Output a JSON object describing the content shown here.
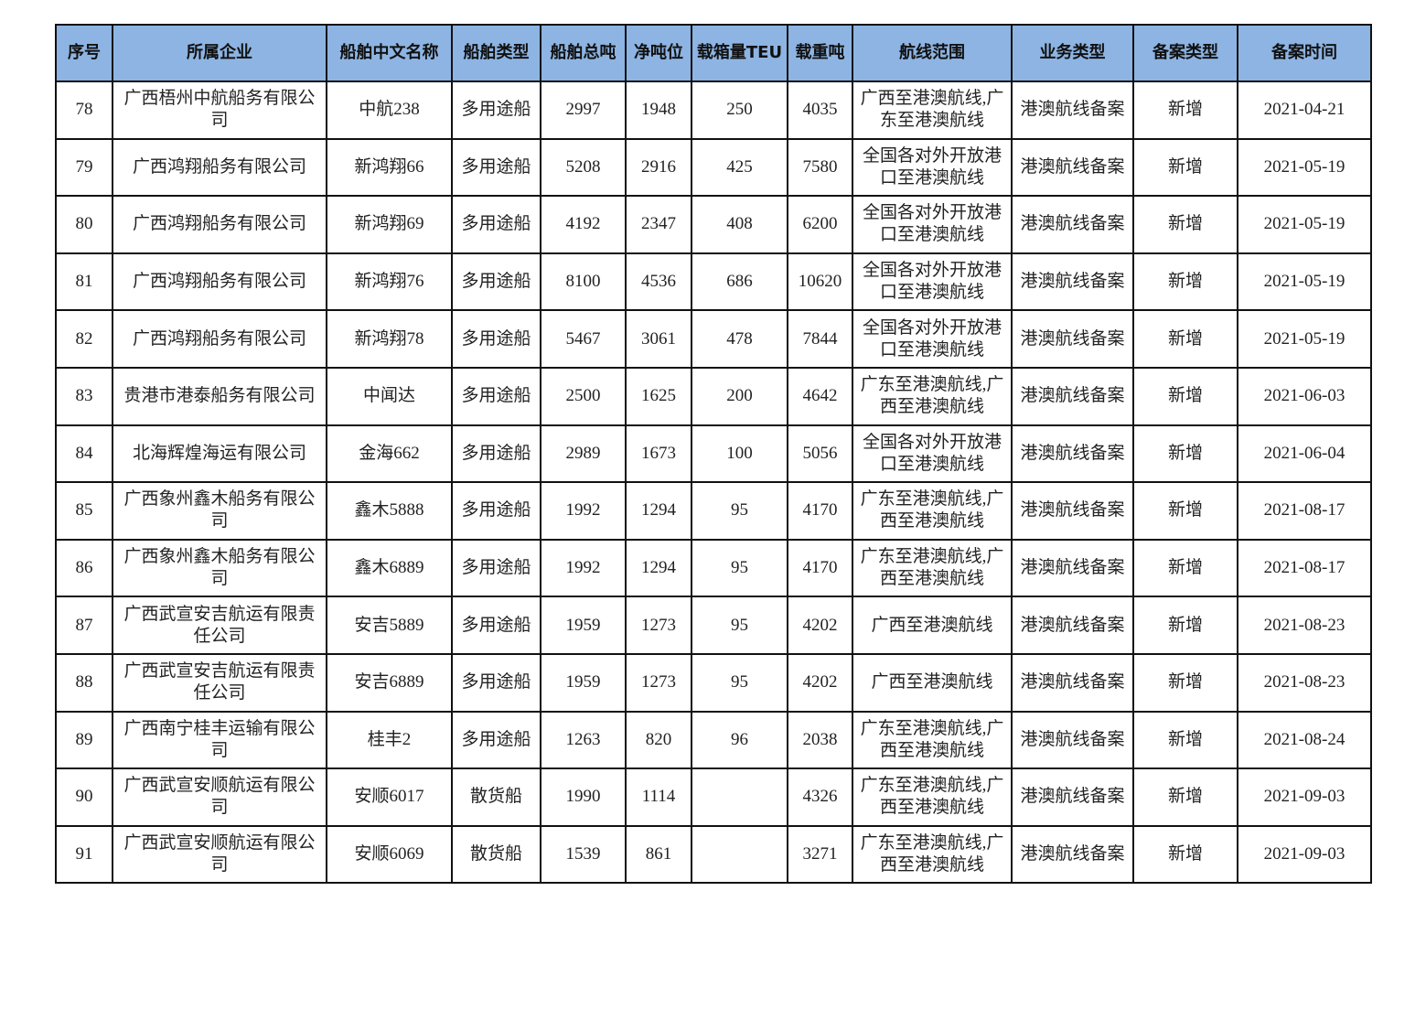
{
  "table": {
    "header_color": "#8DB4E2",
    "columns": [
      "序号",
      "所属企业",
      "船舶中文名称",
      "船舶类型",
      "船舶总吨",
      "净吨位",
      "载箱量TEU",
      "载重吨",
      "航线范围",
      "业务类型",
      "备案类型",
      "备案时间"
    ],
    "rows": [
      [
        "78",
        "广西梧州中航船务有限公司",
        "中航238",
        "多用途船",
        "2997",
        "1948",
        "250",
        "4035",
        "广西至港澳航线,广东至港澳航线",
        "港澳航线备案",
        "新增",
        "2021-04-21"
      ],
      [
        "79",
        "广西鸿翔船务有限公司",
        "新鸿翔66",
        "多用途船",
        "5208",
        "2916",
        "425",
        "7580",
        "全国各对外开放港口至港澳航线",
        "港澳航线备案",
        "新增",
        "2021-05-19"
      ],
      [
        "80",
        "广西鸿翔船务有限公司",
        "新鸿翔69",
        "多用途船",
        "4192",
        "2347",
        "408",
        "6200",
        "全国各对外开放港口至港澳航线",
        "港澳航线备案",
        "新增",
        "2021-05-19"
      ],
      [
        "81",
        "广西鸿翔船务有限公司",
        "新鸿翔76",
        "多用途船",
        "8100",
        "4536",
        "686",
        "10620",
        "全国各对外开放港口至港澳航线",
        "港澳航线备案",
        "新增",
        "2021-05-19"
      ],
      [
        "82",
        "广西鸿翔船务有限公司",
        "新鸿翔78",
        "多用途船",
        "5467",
        "3061",
        "478",
        "7844",
        "全国各对外开放港口至港澳航线",
        "港澳航线备案",
        "新增",
        "2021-05-19"
      ],
      [
        "83",
        "贵港市港泰船务有限公司",
        "中闻达",
        "多用途船",
        "2500",
        "1625",
        "200",
        "4642",
        "广东至港澳航线,广西至港澳航线",
        "港澳航线备案",
        "新增",
        "2021-06-03"
      ],
      [
        "84",
        "北海辉煌海运有限公司",
        "金海662",
        "多用途船",
        "2989",
        "1673",
        "100",
        "5056",
        "全国各对外开放港口至港澳航线",
        "港澳航线备案",
        "新增",
        "2021-06-04"
      ],
      [
        "85",
        "广西象州鑫木船务有限公司",
        "鑫木5888",
        "多用途船",
        "1992",
        "1294",
        "95",
        "4170",
        "广东至港澳航线,广西至港澳航线",
        "港澳航线备案",
        "新增",
        "2021-08-17"
      ],
      [
        "86",
        "广西象州鑫木船务有限公司",
        "鑫木6889",
        "多用途船",
        "1992",
        "1294",
        "95",
        "4170",
        "广东至港澳航线,广西至港澳航线",
        "港澳航线备案",
        "新增",
        "2021-08-17"
      ],
      [
        "87",
        "广西武宣安吉航运有限责任公司",
        "安吉5889",
        "多用途船",
        "1959",
        "1273",
        "95",
        "4202",
        "广西至港澳航线",
        "港澳航线备案",
        "新增",
        "2021-08-23"
      ],
      [
        "88",
        "广西武宣安吉航运有限责任公司",
        "安吉6889",
        "多用途船",
        "1959",
        "1273",
        "95",
        "4202",
        "广西至港澳航线",
        "港澳航线备案",
        "新增",
        "2021-08-23"
      ],
      [
        "89",
        "广西南宁桂丰运输有限公司",
        "桂丰2",
        "多用途船",
        "1263",
        "820",
        "96",
        "2038",
        "广东至港澳航线,广西至港澳航线",
        "港澳航线备案",
        "新增",
        "2021-08-24"
      ],
      [
        "90",
        "广西武宣安顺航运有限公司",
        "安顺6017",
        "散货船",
        "1990",
        "1114",
        "",
        "4326",
        "广东至港澳航线,广西至港澳航线",
        "港澳航线备案",
        "新增",
        "2021-09-03"
      ],
      [
        "91",
        "广西武宣安顺航运有限公司",
        "安顺6069",
        "散货船",
        "1539",
        "861",
        "",
        "3271",
        "广东至港澳航线,广西至港澳航线",
        "港澳航线备案",
        "新增",
        "2021-09-03"
      ]
    ]
  }
}
